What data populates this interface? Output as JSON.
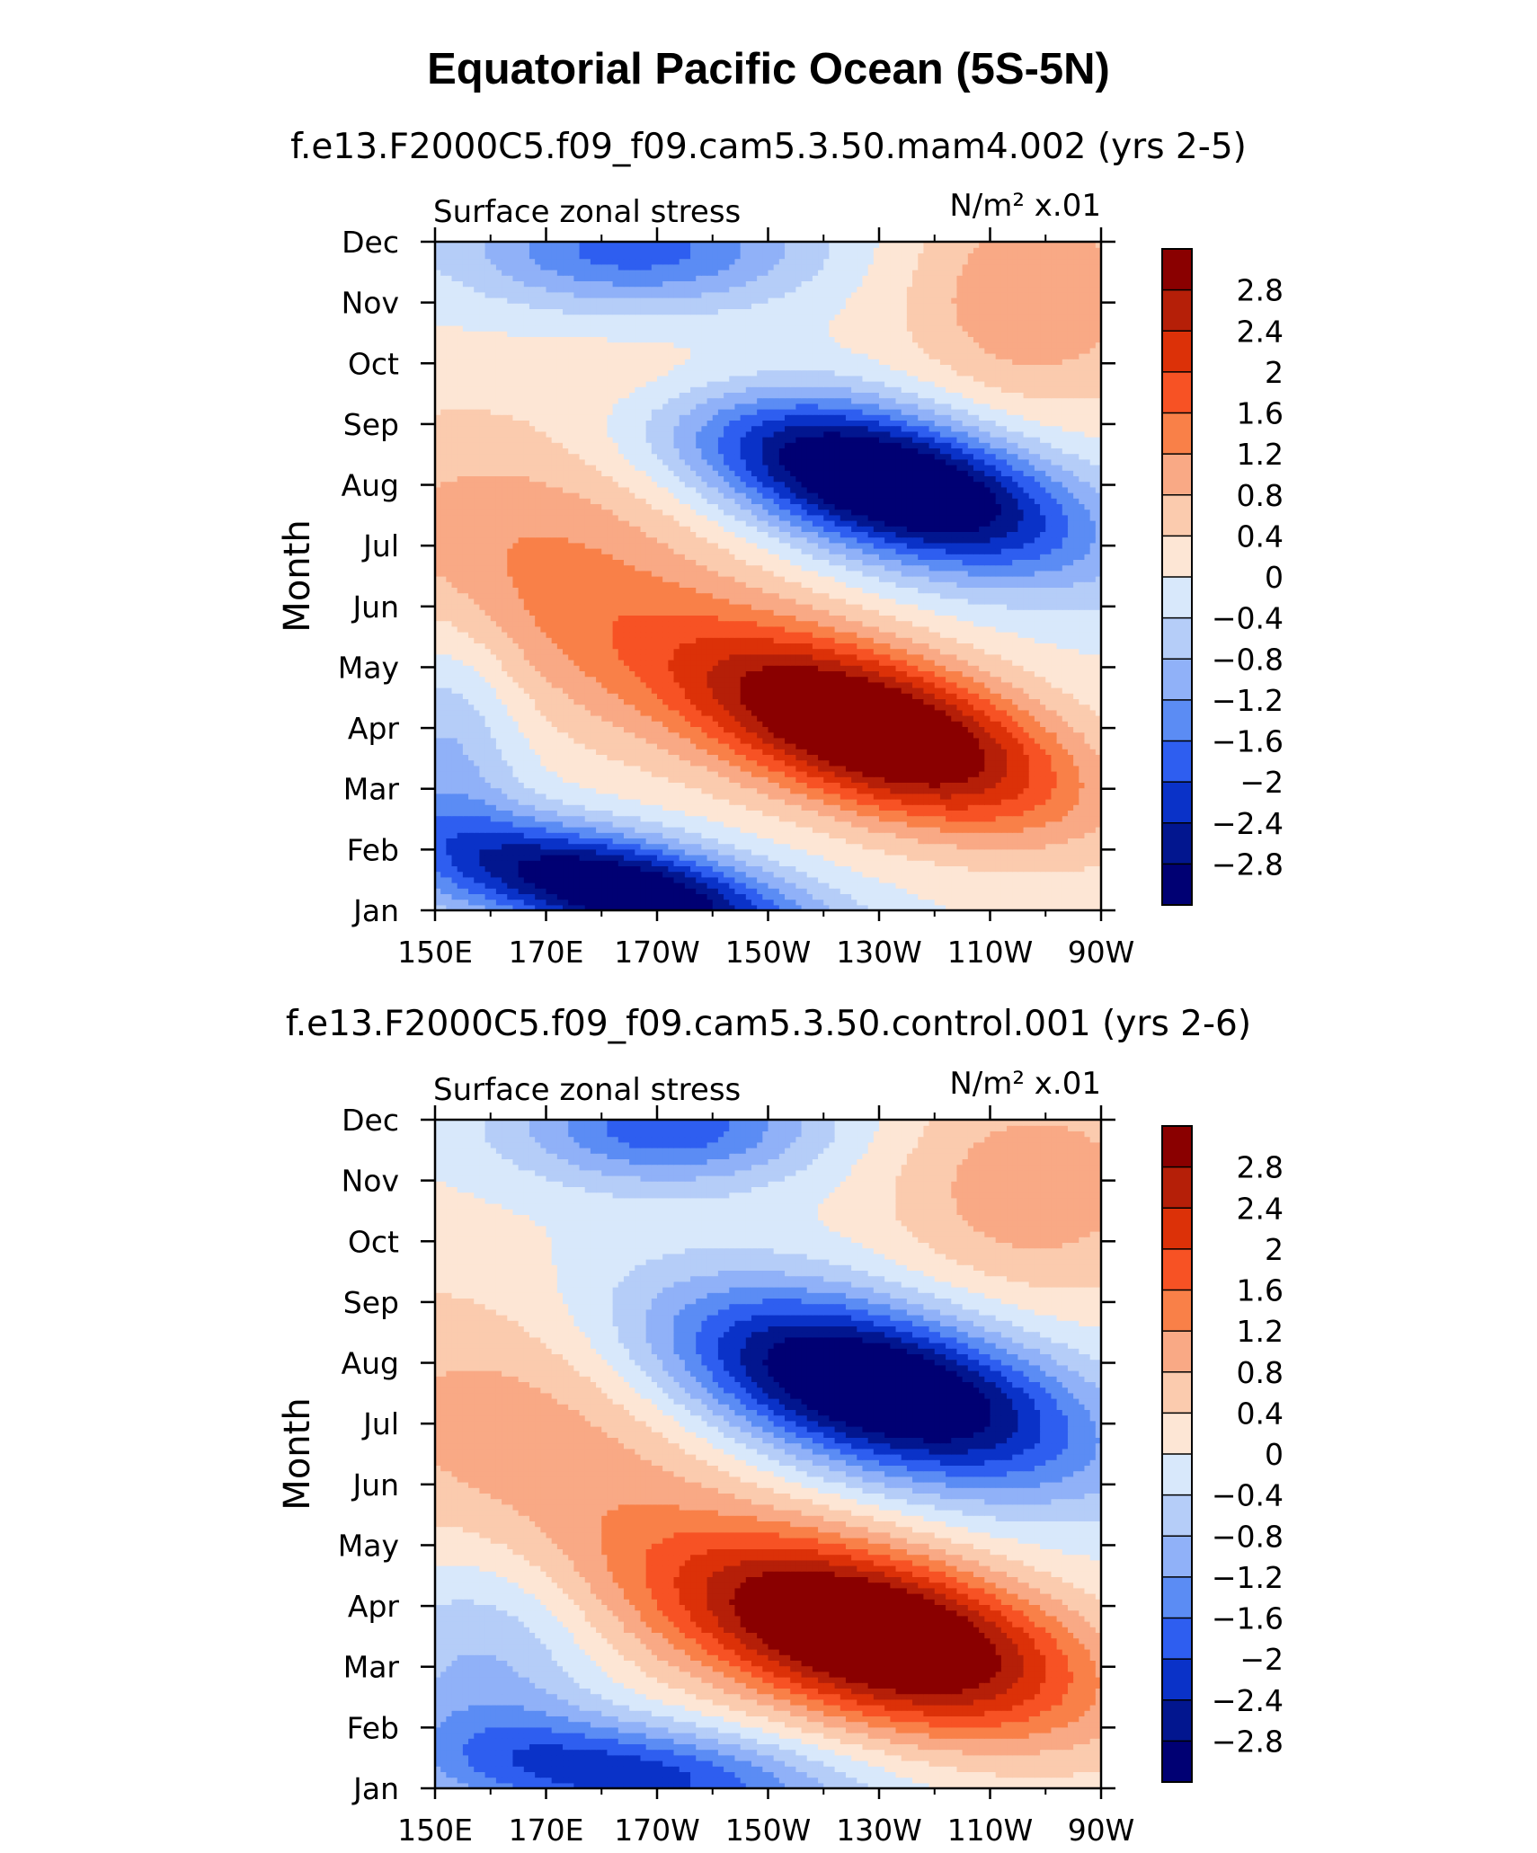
{
  "figure": {
    "title": "Equatorial Pacific Ocean (5S-5N)"
  },
  "chart_data": [
    {
      "type": "heatmap",
      "title": "f.e13.F2000C5.f09_f09.cam5.3.50.mam4.002 (yrs 2-5)",
      "left_label": "Surface zonal stress",
      "right_label": "N/m² x.01",
      "xlabel": "",
      "ylabel": "Month",
      "x_ticks": [
        "150E",
        "170E",
        "170W",
        "150W",
        "130W",
        "110W",
        "90W"
      ],
      "x_range": [
        "150E",
        "90W"
      ],
      "y_ticks": [
        "Jan",
        "Feb",
        "Mar",
        "Apr",
        "May",
        "Jun",
        "Jul",
        "Aug",
        "Sep",
        "Oct",
        "Nov",
        "Dec"
      ],
      "grid": false,
      "colorbar_labels": [
        "2.8",
        "2.4",
        "2",
        "1.6",
        "1.2",
        "0.8",
        "0.4",
        "0",
        "−0.4",
        "−0.8",
        "−1.2",
        "−1.6",
        "−2",
        "−2.4",
        "−2.8"
      ],
      "contour_levels": [
        2.8,
        2.4,
        2,
        1.6,
        1.2,
        0.8,
        0.4,
        0,
        -0.4,
        -0.8,
        -1.2,
        -1.6,
        -2,
        -2.4,
        -2.8
      ],
      "features": [
        {
          "type": "max",
          "month": "Mar-Apr",
          "lon": "140W-130W",
          "value": 2.8
        },
        {
          "type": "min",
          "month": "Jul-Aug",
          "lon": "140W-125W",
          "value": -2.8
        },
        {
          "type": "min",
          "month": "Jan",
          "lon": "175W",
          "value": -2.8
        }
      ]
    },
    {
      "type": "heatmap",
      "title": "f.e13.F2000C5.f09_f09.cam5.3.50.control.001 (yrs 2-6)",
      "left_label": "Surface zonal stress",
      "right_label": "N/m² x.01",
      "xlabel": "",
      "ylabel": "Month",
      "x_ticks": [
        "150E",
        "170E",
        "170W",
        "150W",
        "130W",
        "110W",
        "90W"
      ],
      "x_range": [
        "150E",
        "90W"
      ],
      "y_ticks": [
        "Jan",
        "Feb",
        "Mar",
        "Apr",
        "May",
        "Jun",
        "Jul",
        "Aug",
        "Sep",
        "Oct",
        "Nov",
        "Dec"
      ],
      "grid": false,
      "colorbar_labels": [
        "2.8",
        "2.4",
        "2",
        "1.6",
        "1.2",
        "0.8",
        "0.4",
        "0",
        "−0.4",
        "−0.8",
        "−1.2",
        "−1.6",
        "−2",
        "−2.4",
        "−2.8"
      ],
      "contour_levels": [
        2.8,
        2.4,
        2,
        1.6,
        1.2,
        0.8,
        0.4,
        0,
        -0.4,
        -0.8,
        -1.2,
        -1.6,
        -2,
        -2.4,
        -2.8
      ],
      "features": [
        {
          "type": "max",
          "month": "Mar-Apr",
          "lon": "145W-125W",
          "value": 2.8
        },
        {
          "type": "min",
          "month": "Jul",
          "lon": "140W-115W",
          "value": -2.8
        },
        {
          "type": "min",
          "month": "Dec",
          "lon": "170W",
          "value": -2.0
        }
      ]
    }
  ],
  "colors": {
    "palette": [
      "#8a0000",
      "#b51f08",
      "#dc3108",
      "#f75224",
      "#f98048",
      "#f9a985",
      "#fbcbae",
      "#fde6d5",
      "#d8e8fb",
      "#b5cdf8",
      "#90b1f8",
      "#5b8cf4",
      "#2e5ef0",
      "#0a32c8",
      "#02168f",
      "#000073"
    ]
  }
}
